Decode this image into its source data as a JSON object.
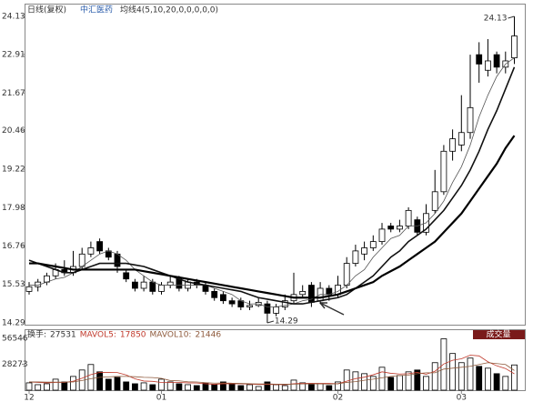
{
  "chart_data": {
    "type": "candlestick",
    "period_label": "日线(复权)",
    "title": "中汇医药",
    "indicator": "均线4(5,10,20,0,0,0,0,0)",
    "categories": [
      "12",
      null,
      null,
      null,
      null,
      null,
      null,
      null,
      null,
      null,
      null,
      null,
      null,
      null,
      null,
      "01",
      null,
      null,
      null,
      null,
      null,
      null,
      null,
      null,
      null,
      null,
      null,
      null,
      null,
      null,
      null,
      null,
      null,
      null,
      null,
      "02",
      null,
      null,
      null,
      null,
      null,
      null,
      null,
      null,
      null,
      null,
      null,
      null,
      null,
      "03",
      null,
      null,
      null,
      null,
      null,
      null
    ],
    "open": [
      15.3,
      15.45,
      15.6,
      15.8,
      16.0,
      15.9,
      16.1,
      16.5,
      16.9,
      16.6,
      16.5,
      15.9,
      15.6,
      15.4,
      15.6,
      15.3,
      15.5,
      15.7,
      15.4,
      15.6,
      15.5,
      15.3,
      15.2,
      15.0,
      15.0,
      14.8,
      14.85,
      14.9,
      14.6,
      14.8,
      15.0,
      15.2,
      15.5,
      15.0,
      15.4,
      15.2,
      15.5,
      16.2,
      16.5,
      16.7,
      16.9,
      17.4,
      17.3,
      17.4,
      17.6,
      17.2,
      17.9,
      18.5,
      19.8,
      20.0,
      20.4,
      22.9,
      22.4,
      22.9,
      22.5,
      22.8
    ],
    "high": [
      15.6,
      15.7,
      15.9,
      16.2,
      16.3,
      16.6,
      16.7,
      16.9,
      17.0,
      16.7,
      16.6,
      16.0,
      15.7,
      15.8,
      15.7,
      15.6,
      15.8,
      15.8,
      15.7,
      15.7,
      15.6,
      15.4,
      15.3,
      15.1,
      15.1,
      15.0,
      15.1,
      15.0,
      14.9,
      15.2,
      15.9,
      15.5,
      15.6,
      15.6,
      15.5,
      15.8,
      16.4,
      16.8,
      16.9,
      17.1,
      17.5,
      17.5,
      17.6,
      18.0,
      17.7,
      18.1,
      19.2,
      20.0,
      20.5,
      21.6,
      22.9,
      23.3,
      23.4,
      23.0,
      23.0,
      24.13
    ],
    "low": [
      15.2,
      15.3,
      15.5,
      15.7,
      15.8,
      15.8,
      16.0,
      16.4,
      16.5,
      16.3,
      15.9,
      15.6,
      15.3,
      15.3,
      15.2,
      15.2,
      15.4,
      15.3,
      15.3,
      15.4,
      15.2,
      15.0,
      14.9,
      14.8,
      14.7,
      14.7,
      14.8,
      14.29,
      14.5,
      14.7,
      14.9,
      15.1,
      14.8,
      14.9,
      15.0,
      15.1,
      15.4,
      16.1,
      16.3,
      16.6,
      16.8,
      17.2,
      17.2,
      17.3,
      17.1,
      17.1,
      17.8,
      18.4,
      19.5,
      19.8,
      20.2,
      22.0,
      22.2,
      22.3,
      22.3,
      22.6
    ],
    "close": [
      15.45,
      15.6,
      15.8,
      16.0,
      15.9,
      16.1,
      16.5,
      16.7,
      16.6,
      16.4,
      16.1,
      15.7,
      15.4,
      15.6,
      15.3,
      15.5,
      15.6,
      15.4,
      15.6,
      15.5,
      15.3,
      15.1,
      15.0,
      14.9,
      14.8,
      14.85,
      14.95,
      14.6,
      14.8,
      15.0,
      15.2,
      15.3,
      14.95,
      15.4,
      15.2,
      15.5,
      16.2,
      16.6,
      16.7,
      16.9,
      17.3,
      17.3,
      17.4,
      17.9,
      17.2,
      17.8,
      18.5,
      19.8,
      20.2,
      20.4,
      21.2,
      22.6,
      22.7,
      22.5,
      22.7,
      23.5
    ],
    "ma": [
      {
        "values": [
          15.5,
          15.5,
          15.6,
          15.7,
          15.75,
          15.9,
          16.1,
          16.3,
          16.5,
          16.6,
          16.5,
          16.3,
          16.0,
          15.8,
          15.6,
          15.5,
          15.5,
          15.5,
          15.5,
          15.5,
          15.5,
          15.4,
          15.3,
          15.2,
          15.0,
          14.9,
          14.9,
          14.8,
          14.8,
          14.85,
          14.9,
          15.0,
          15.05,
          15.2,
          15.2,
          15.3,
          15.5,
          15.8,
          16.0,
          16.4,
          16.7,
          17.0,
          17.1,
          17.4,
          17.4,
          17.5,
          17.8,
          18.2,
          18.8,
          19.3,
          20.0,
          20.9,
          21.6,
          22.2,
          22.6,
          22.8
        ],
        "color": "#555555",
        "width": 0.8
      },
      {
        "values": [
          16.3,
          16.2,
          16.1,
          16.0,
          15.9,
          15.9,
          16.0,
          16.1,
          16.2,
          16.2,
          16.2,
          16.2,
          16.15,
          16.1,
          16.0,
          15.9,
          15.8,
          15.7,
          15.6,
          15.55,
          15.5,
          15.45,
          15.4,
          15.35,
          15.3,
          15.2,
          15.1,
          15.05,
          15.0,
          14.95,
          14.9,
          14.9,
          14.95,
          15.0,
          15.05,
          15.1,
          15.2,
          15.4,
          15.6,
          15.8,
          16.1,
          16.4,
          16.6,
          16.9,
          17.1,
          17.3,
          17.6,
          17.9,
          18.3,
          18.7,
          19.2,
          19.8,
          20.5,
          21.1,
          21.8,
          22.5
        ],
        "color": "#111111",
        "width": 1.6
      },
      {
        "values": [
          16.2,
          16.2,
          16.15,
          16.1,
          16.05,
          16.0,
          16.0,
          16.0,
          16.0,
          16.0,
          16.0,
          16.0,
          16.0,
          15.95,
          15.9,
          15.85,
          15.8,
          15.75,
          15.7,
          15.65,
          15.6,
          15.55,
          15.5,
          15.45,
          15.4,
          15.35,
          15.3,
          15.25,
          15.2,
          15.15,
          15.1,
          15.1,
          15.1,
          15.1,
          15.15,
          15.2,
          15.3,
          15.4,
          15.5,
          15.6,
          15.8,
          15.95,
          16.1,
          16.3,
          16.5,
          16.7,
          16.9,
          17.2,
          17.5,
          17.8,
          18.2,
          18.6,
          19.0,
          19.4,
          19.9,
          20.3
        ],
        "color": "#000000",
        "width": 2.2
      }
    ],
    "ylim": [
      14.29,
      24.13
    ],
    "yticks": [
      14.29,
      15.53,
      16.76,
      17.98,
      19.22,
      20.46,
      21.67,
      22.91,
      24.13
    ],
    "volume_label": "换手:",
    "volume_panel_title": "成交量",
    "volume": [
      8000,
      6000,
      7000,
      12000,
      9000,
      15000,
      22000,
      28000,
      20000,
      12000,
      14000,
      9000,
      7000,
      8000,
      6000,
      12000,
      9000,
      7000,
      6000,
      5000,
      8000,
      6000,
      9000,
      7000,
      5000,
      6000,
      4000,
      9000,
      6000,
      5000,
      11000,
      8000,
      6000,
      7000,
      5000,
      9000,
      22000,
      20000,
      18000,
      15000,
      25000,
      14000,
      16000,
      20000,
      22000,
      15000,
      30000,
      56000,
      40000,
      30000,
      35000,
      26000,
      24000,
      18000,
      15000,
      27531
    ],
    "mavol": [
      {
        "name": "MAVOL5:",
        "color": "#c0392b",
        "values": [
          9000,
          8500,
          8000,
          8500,
          8400,
          9800,
          13000,
          17000,
          19400,
          19400,
          19200,
          16600,
          12400,
          10000,
          9600,
          8400,
          8400,
          8400,
          8000,
          7800,
          7000,
          6400,
          7000,
          7000,
          7000,
          6600,
          6200,
          6200,
          6200,
          6000,
          7000,
          7600,
          7600,
          7400,
          7400,
          7000,
          9800,
          12600,
          14200,
          16800,
          20000,
          18400,
          17600,
          18000,
          19400,
          17400,
          20600,
          28600,
          32600,
          34200,
          38200,
          37400,
          31000,
          26600,
          23600,
          17850
        ]
      },
      {
        "name": "MAVOL10:",
        "color": "#8e5a3c",
        "values": [
          9000,
          9000,
          8800,
          8800,
          8800,
          9000,
          10500,
          12500,
          14000,
          14500,
          15000,
          15000,
          14700,
          14000,
          13800,
          12900,
          10500,
          10200,
          9200,
          8900,
          8200,
          7700,
          7800,
          7600,
          7400,
          7000,
          6800,
          6800,
          6600,
          6500,
          6600,
          6800,
          6900,
          6900,
          6700,
          7000,
          8500,
          9300,
          10800,
          12000,
          13500,
          15000,
          16000,
          16500,
          18000,
          19000,
          19000,
          23000,
          24000,
          25000,
          26000,
          28000,
          30000,
          29000,
          28000,
          21446
        ]
      }
    ],
    "vylim": [
      0,
      56546
    ],
    "vyticks": [
      28273,
      56546
    ]
  }
}
